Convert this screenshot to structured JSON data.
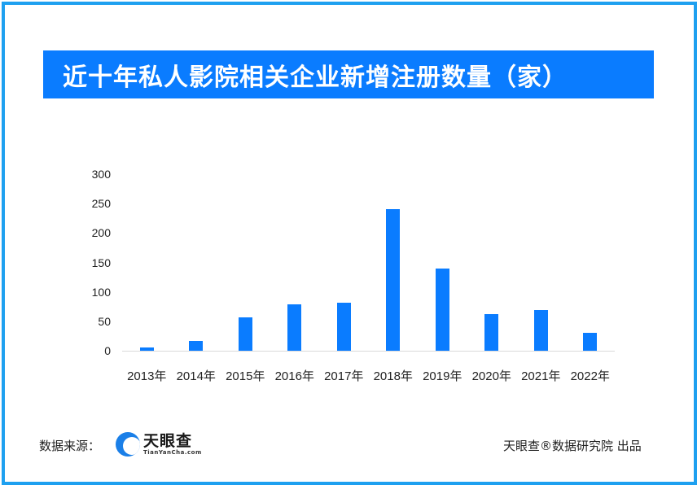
{
  "title": "近十年私人影院相关企业新增注册数量（家）",
  "colors": {
    "frame": "#1ea0f0",
    "title_bg": "#0a7cff",
    "bar": "#0a7cff",
    "axis": "#d9d9d9"
  },
  "footer": {
    "source_label": "数据来源：",
    "logo_cn": "天眼查",
    "logo_en": "TianYanCha.com",
    "credit": "天眼查®数据研究院 出品"
  },
  "chart_data": {
    "type": "bar",
    "title": "近十年私人影院相关企业新增注册数量（家）",
    "xlabel": "",
    "ylabel": "",
    "categories": [
      "2013年",
      "2014年",
      "2015年",
      "2016年",
      "2017年",
      "2018年",
      "2019年",
      "2020年",
      "2021年",
      "2022年"
    ],
    "values": [
      5,
      17,
      56,
      79,
      82,
      241,
      140,
      62,
      69,
      30
    ],
    "ylim": [
      0,
      300
    ],
    "yticks": [
      0,
      50,
      100,
      150,
      200,
      250,
      300
    ],
    "grid": false,
    "legend": null
  }
}
